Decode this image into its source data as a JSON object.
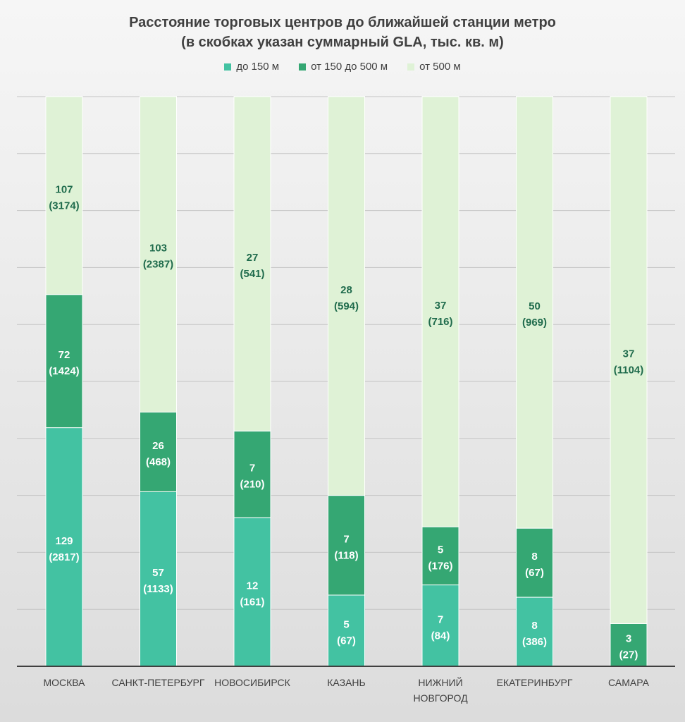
{
  "chart_data": {
    "type": "bar",
    "stacked": true,
    "title_line1": "Расстояние торговых центров до ближайшей станции метро",
    "title_line2": "(в скобках указан суммарный GLA, тыс. кв. м)",
    "normalized": true,
    "grid": true,
    "legend_position": "top",
    "categories": [
      [
        "МОСКВА"
      ],
      [
        "САНКТ-ПЕТЕРБУРГ"
      ],
      [
        "НОВОСИБИРСК"
      ],
      [
        "КАЗАНЬ"
      ],
      [
        "НИЖНИЙ",
        "НОВГОРОД"
      ],
      [
        "ЕКАТЕРИНБУРГ"
      ],
      [
        "САМАРА"
      ]
    ],
    "series": [
      {
        "name": "до 150 м",
        "color": "#43c2a2",
        "values": [
          129,
          57,
          12,
          5,
          7,
          8,
          0
        ],
        "gla": [
          2817,
          1133,
          161,
          67,
          84,
          386,
          null
        ]
      },
      {
        "name": "от 150 до 500 м",
        "color": "#35a773",
        "values": [
          72,
          26,
          7,
          7,
          5,
          8,
          3
        ],
        "gla": [
          1424,
          468,
          210,
          118,
          176,
          67,
          27
        ]
      },
      {
        "name": "от 500 м",
        "color": "#dff2d6",
        "values": [
          107,
          103,
          27,
          28,
          37,
          50,
          37
        ],
        "gla": [
          3174,
          2387,
          541,
          594,
          716,
          969,
          1104
        ]
      }
    ]
  }
}
